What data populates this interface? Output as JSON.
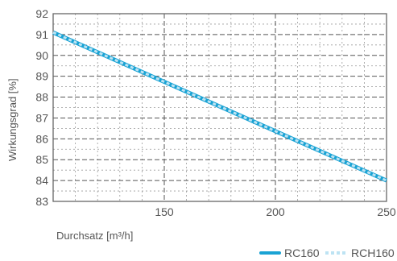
{
  "chart_data": {
    "type": "line",
    "xlabel": "Durchsatz [m³/h]",
    "ylabel": "Wirkungsgrad [%]",
    "xlim": [
      100,
      250
    ],
    "ylim": [
      83,
      92
    ],
    "x_ticks": [
      150,
      200,
      250
    ],
    "y_ticks": [
      83,
      84,
      85,
      86,
      87,
      88,
      89,
      90,
      91,
      92
    ],
    "grid": true,
    "legend_position": "bottom-right",
    "series": [
      {
        "name": "RC160",
        "style": "solid",
        "color": "#1aa3d4",
        "x": [
          100,
          250
        ],
        "y": [
          91.1,
          84.0
        ]
      },
      {
        "name": "RCH160",
        "style": "dashed",
        "color": "#bde3f3",
        "x": [
          100,
          250
        ],
        "y": [
          91.1,
          84.0
        ]
      }
    ]
  }
}
